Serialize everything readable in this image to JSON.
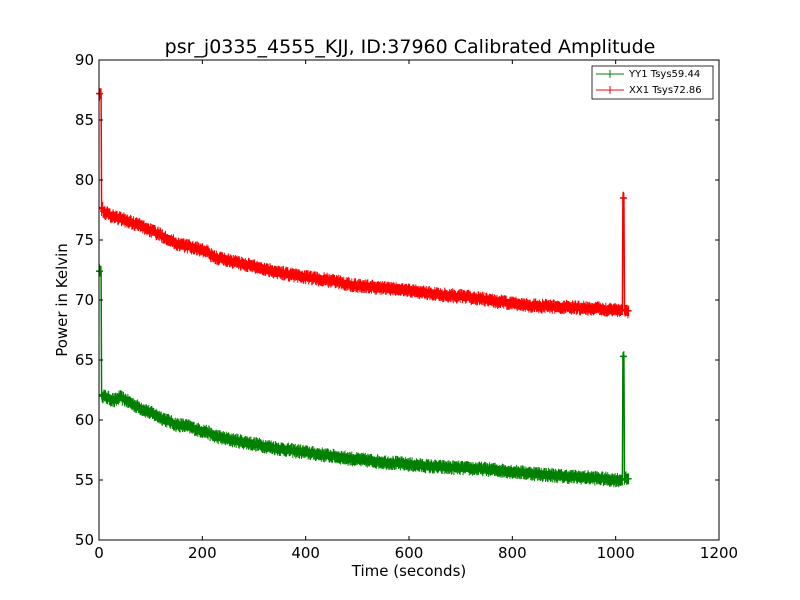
{
  "chart_data": {
    "type": "line",
    "title": "psr_j0335_4555_KJJ, ID:37960 Calibrated Amplitude",
    "xlabel": "Time (seconds)",
    "ylabel": "Power in Kelvin",
    "xlim": [
      0,
      1200
    ],
    "ylim": [
      50,
      90
    ],
    "xticks": [
      "0",
      "200",
      "400",
      "600",
      "800",
      "1000",
      "1200"
    ],
    "yticks": [
      "50",
      "55",
      "60",
      "65",
      "70",
      "75",
      "80",
      "85",
      "90"
    ],
    "grid": false,
    "legend_position": "top-right",
    "series": [
      {
        "name": "YY1 Tsys59.44",
        "color": "#008000",
        "x": [
          0,
          2,
          5,
          6,
          8,
          20,
          30,
          40,
          50,
          70,
          100,
          130,
          150,
          170,
          190,
          210,
          220,
          250,
          300,
          350,
          400,
          450,
          500,
          550,
          600,
          650,
          700,
          750,
          800,
          850,
          900,
          950,
          1000,
          1012,
          1014,
          1016,
          1017,
          1020,
          1025
        ],
        "y": [
          72.4,
          72.4,
          62.0,
          62.1,
          62.0,
          61.8,
          61.6,
          61.9,
          61.7,
          61.2,
          60.6,
          60.0,
          59.6,
          59.5,
          59.2,
          59.0,
          58.7,
          58.4,
          58.0,
          57.6,
          57.3,
          57.0,
          56.7,
          56.5,
          56.3,
          56.1,
          56.0,
          55.9,
          55.7,
          55.5,
          55.3,
          55.2,
          55.0,
          55.0,
          65.3,
          65.3,
          55.1,
          55.1,
          55.1
        ]
      },
      {
        "name": "XX1 Tsys72.86",
        "color": "#ff0000",
        "x": [
          0,
          2,
          5,
          6,
          8,
          20,
          40,
          60,
          80,
          100,
          130,
          150,
          170,
          190,
          210,
          220,
          250,
          300,
          350,
          400,
          450,
          500,
          550,
          600,
          650,
          700,
          740,
          750,
          800,
          850,
          900,
          950,
          1000,
          1012,
          1014,
          1016,
          1017,
          1020,
          1025
        ],
        "y": [
          87.2,
          87.2,
          77.6,
          77.7,
          77.4,
          77.1,
          76.8,
          76.5,
          76.2,
          75.8,
          75.2,
          74.7,
          74.5,
          74.3,
          74.0,
          73.6,
          73.3,
          72.8,
          72.3,
          71.9,
          71.6,
          71.2,
          71.0,
          70.8,
          70.5,
          70.3,
          70.1,
          70.0,
          69.7,
          69.5,
          69.4,
          69.3,
          69.2,
          69.2,
          78.5,
          78.5,
          69.1,
          69.1,
          69.1
        ]
      }
    ]
  }
}
